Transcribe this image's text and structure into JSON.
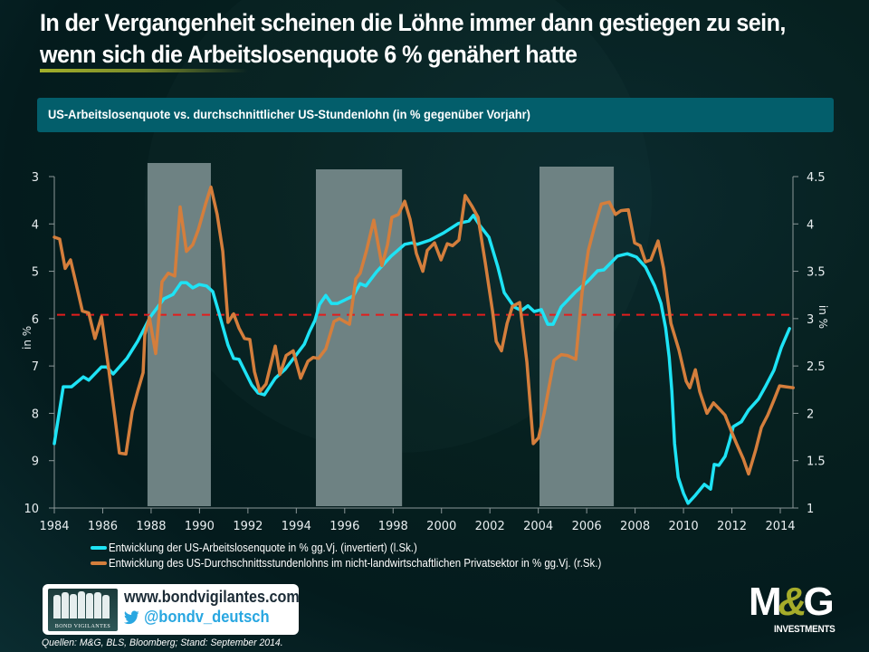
{
  "header": {
    "title": "In der Vergangenheit scheinen die Löhne immer dann gestiegen zu sein, wenn sich die Arbeitslosenquote 6 % genähert hatte",
    "subtitle": "US-Arbeitslosenquote vs. durchschnittlicher US-Stundenlohn (in  % gegenüber Vorjahr)"
  },
  "colors": {
    "unemployment": "#1ee3f5",
    "wages": "#d47e3c",
    "reference_line": "#e31d1d",
    "recession_shading": "#6e8283",
    "subtitle_box": "#035e6b",
    "brand_accent": "#a6ac2a"
  },
  "chart_data": {
    "type": "line",
    "title": "US-Arbeitslosenquote vs. durchschnittlicher US-Stundenlohn (in  % gegenüber Vorjahr)",
    "xlabel": "",
    "ylabel_left": "in %",
    "ylabel_right": "in %",
    "x_range": [
      1984,
      2014.55
    ],
    "x_ticks": [
      1984,
      1986,
      1988,
      1990,
      1992,
      1994,
      1996,
      1998,
      2000,
      2002,
      2004,
      2006,
      2008,
      2010,
      2012,
      2014
    ],
    "y_left": {
      "range": [
        3,
        10
      ],
      "inverted": true,
      "ticks": [
        3,
        4,
        5,
        6,
        7,
        8,
        9,
        10
      ]
    },
    "y_right": {
      "range": [
        1,
        4.5
      ],
      "inverted": false,
      "ticks": [
        1,
        1.5,
        2,
        2.5,
        3,
        3.5,
        4,
        4.5
      ]
    },
    "grid": false,
    "reference_line": {
      "axis": "left",
      "value": 5.92,
      "style": "dashed"
    },
    "shaded_periods": [
      {
        "start": 1987.85,
        "end": 1990.47
      },
      {
        "start": 1994.81,
        "end": 1998.37
      },
      {
        "start": 2004.05,
        "end": 2007.12
      }
    ],
    "legend_position": "bottom-left",
    "series": [
      {
        "name": "Entwicklung der US-Arbeitslosenquote in % gg.Vj. (invertiert) (l.Sk.)",
        "axis": "left",
        "points": [
          [
            1984.0,
            8.64
          ],
          [
            1984.37,
            7.44
          ],
          [
            1984.71,
            7.44
          ],
          [
            1985.2,
            7.23
          ],
          [
            1985.42,
            7.3
          ],
          [
            1985.95,
            7.02
          ],
          [
            1986.17,
            7.02
          ],
          [
            1986.43,
            7.17
          ],
          [
            1987.0,
            6.84
          ],
          [
            1987.44,
            6.48
          ],
          [
            1987.97,
            5.96
          ],
          [
            1988.53,
            5.58
          ],
          [
            1988.9,
            5.49
          ],
          [
            1989.24,
            5.24
          ],
          [
            1989.46,
            5.24
          ],
          [
            1989.72,
            5.35
          ],
          [
            1989.99,
            5.28
          ],
          [
            1990.29,
            5.31
          ],
          [
            1990.55,
            5.43
          ],
          [
            1990.85,
            5.96
          ],
          [
            1991.18,
            6.56
          ],
          [
            1991.41,
            6.84
          ],
          [
            1991.63,
            6.86
          ],
          [
            1992.16,
            7.4
          ],
          [
            1992.42,
            7.57
          ],
          [
            1992.68,
            7.61
          ],
          [
            1993.13,
            7.26
          ],
          [
            1993.54,
            7.07
          ],
          [
            1993.99,
            6.77
          ],
          [
            1994.33,
            6.54
          ],
          [
            1994.55,
            6.27
          ],
          [
            1994.77,
            6.04
          ],
          [
            1994.96,
            5.7
          ],
          [
            1995.22,
            5.51
          ],
          [
            1995.45,
            5.68
          ],
          [
            1995.71,
            5.68
          ],
          [
            1996.35,
            5.52
          ],
          [
            1996.64,
            5.26
          ],
          [
            1996.87,
            5.31
          ],
          [
            1997.32,
            5.01
          ],
          [
            1997.92,
            4.68
          ],
          [
            1998.48,
            4.43
          ],
          [
            1998.78,
            4.4
          ],
          [
            1999.0,
            4.43
          ],
          [
            1999.53,
            4.34
          ],
          [
            2000.09,
            4.19
          ],
          [
            2000.69,
            3.99
          ],
          [
            2001.13,
            3.94
          ],
          [
            2001.32,
            3.82
          ],
          [
            2001.58,
            4.03
          ],
          [
            2001.96,
            4.28
          ],
          [
            2002.33,
            4.91
          ],
          [
            2002.59,
            5.45
          ],
          [
            2003.0,
            5.75
          ],
          [
            2003.3,
            5.83
          ],
          [
            2003.57,
            5.73
          ],
          [
            2003.83,
            5.85
          ],
          [
            2004.13,
            5.81
          ],
          [
            2004.39,
            6.12
          ],
          [
            2004.61,
            6.12
          ],
          [
            2004.95,
            5.75
          ],
          [
            2005.55,
            5.43
          ],
          [
            2006.03,
            5.22
          ],
          [
            2006.45,
            4.99
          ],
          [
            2006.71,
            4.97
          ],
          [
            2007.27,
            4.68
          ],
          [
            2007.68,
            4.63
          ],
          [
            2008.06,
            4.7
          ],
          [
            2008.43,
            4.91
          ],
          [
            2008.81,
            5.31
          ],
          [
            2009.07,
            5.68
          ],
          [
            2009.26,
            6.19
          ],
          [
            2009.41,
            6.82
          ],
          [
            2009.52,
            7.53
          ],
          [
            2009.63,
            8.64
          ],
          [
            2009.78,
            9.35
          ],
          [
            2010.0,
            9.69
          ],
          [
            2010.19,
            9.9
          ],
          [
            2010.49,
            9.73
          ],
          [
            2010.86,
            9.5
          ],
          [
            2011.12,
            9.6
          ],
          [
            2011.27,
            9.08
          ],
          [
            2011.46,
            9.1
          ],
          [
            2011.72,
            8.91
          ],
          [
            2011.91,
            8.58
          ],
          [
            2012.06,
            8.28
          ],
          [
            2012.39,
            8.18
          ],
          [
            2012.69,
            7.93
          ],
          [
            2013.1,
            7.7
          ],
          [
            2013.4,
            7.42
          ],
          [
            2013.74,
            7.09
          ],
          [
            2014.04,
            6.61
          ],
          [
            2014.38,
            6.21
          ]
        ]
      },
      {
        "name": "Entwicklung des US-Durchschnittsstundenlohns im nicht-landwirtschaftlichen Privatsektor in % gg.Vj. (r.Sk.)",
        "axis": "right",
        "points": [
          [
            1984.0,
            3.86
          ],
          [
            1984.22,
            3.84
          ],
          [
            1984.45,
            3.53
          ],
          [
            1984.67,
            3.62
          ],
          [
            1984.89,
            3.38
          ],
          [
            1985.16,
            3.08
          ],
          [
            1985.42,
            3.06
          ],
          [
            1985.68,
            2.79
          ],
          [
            1985.95,
            3.02
          ],
          [
            1986.24,
            2.48
          ],
          [
            1986.51,
            1.95
          ],
          [
            1986.69,
            1.58
          ],
          [
            1986.96,
            1.57
          ],
          [
            1987.22,
            2.02
          ],
          [
            1987.44,
            2.23
          ],
          [
            1987.67,
            2.43
          ],
          [
            1987.74,
            2.83
          ],
          [
            1987.93,
            3.01
          ],
          [
            1988.19,
            2.63
          ],
          [
            1988.45,
            3.39
          ],
          [
            1988.71,
            3.48
          ],
          [
            1988.98,
            3.45
          ],
          [
            1989.2,
            4.18
          ],
          [
            1989.46,
            3.71
          ],
          [
            1989.72,
            3.78
          ],
          [
            1989.95,
            3.94
          ],
          [
            1990.25,
            4.21
          ],
          [
            1990.47,
            4.39
          ],
          [
            1990.73,
            4.1
          ],
          [
            1990.96,
            3.71
          ],
          [
            1991.18,
            2.96
          ],
          [
            1991.41,
            3.05
          ],
          [
            1991.63,
            2.9
          ],
          [
            1991.86,
            2.79
          ],
          [
            1992.08,
            2.78
          ],
          [
            1992.27,
            2.44
          ],
          [
            1992.49,
            2.23
          ],
          [
            1992.75,
            2.31
          ],
          [
            1993.13,
            2.71
          ],
          [
            1993.32,
            2.41
          ],
          [
            1993.58,
            2.61
          ],
          [
            1993.87,
            2.66
          ],
          [
            1994.18,
            2.37
          ],
          [
            1994.48,
            2.55
          ],
          [
            1994.7,
            2.59
          ],
          [
            1994.92,
            2.58
          ],
          [
            1995.22,
            2.68
          ],
          [
            1995.56,
            2.97
          ],
          [
            1995.78,
            3.0
          ],
          [
            1996.2,
            2.94
          ],
          [
            1996.46,
            3.42
          ],
          [
            1996.64,
            3.48
          ],
          [
            1996.9,
            3.72
          ],
          [
            1997.2,
            4.04
          ],
          [
            1997.54,
            3.56
          ],
          [
            1997.77,
            3.78
          ],
          [
            1997.95,
            4.07
          ],
          [
            1998.22,
            4.1
          ],
          [
            1998.48,
            4.24
          ],
          [
            1998.7,
            4.05
          ],
          [
            1998.96,
            3.69
          ],
          [
            1999.23,
            3.5
          ],
          [
            1999.41,
            3.72
          ],
          [
            1999.71,
            3.8
          ],
          [
            1999.98,
            3.62
          ],
          [
            2000.24,
            3.79
          ],
          [
            2000.46,
            3.77
          ],
          [
            2000.72,
            3.83
          ],
          [
            2000.98,
            4.3
          ],
          [
            2001.25,
            4.19
          ],
          [
            2001.51,
            4.07
          ],
          [
            2001.81,
            3.59
          ],
          [
            2002.11,
            3.08
          ],
          [
            2002.26,
            2.76
          ],
          [
            2002.48,
            2.66
          ],
          [
            2002.71,
            2.95
          ],
          [
            2002.93,
            3.13
          ],
          [
            2003.23,
            3.17
          ],
          [
            2003.53,
            2.54
          ],
          [
            2003.79,
            1.68
          ],
          [
            2004.01,
            1.74
          ],
          [
            2004.24,
            2.0
          ],
          [
            2004.65,
            2.56
          ],
          [
            2004.95,
            2.62
          ],
          [
            2005.21,
            2.61
          ],
          [
            2005.55,
            2.57
          ],
          [
            2005.81,
            3.28
          ],
          [
            2006.07,
            3.72
          ],
          [
            2006.3,
            3.95
          ],
          [
            2006.6,
            4.21
          ],
          [
            2006.93,
            4.23
          ],
          [
            2007.19,
            4.1
          ],
          [
            2007.42,
            4.14
          ],
          [
            2007.72,
            4.15
          ],
          [
            2007.98,
            3.8
          ],
          [
            2008.21,
            3.77
          ],
          [
            2008.43,
            3.6
          ],
          [
            2008.65,
            3.62
          ],
          [
            2008.95,
            3.82
          ],
          [
            2009.18,
            3.53
          ],
          [
            2009.48,
            2.95
          ],
          [
            2009.81,
            2.67
          ],
          [
            2010.11,
            2.34
          ],
          [
            2010.26,
            2.27
          ],
          [
            2010.49,
            2.46
          ],
          [
            2010.67,
            2.23
          ],
          [
            2010.97,
            2.0
          ],
          [
            2011.24,
            2.11
          ],
          [
            2011.5,
            2.04
          ],
          [
            2011.72,
            1.98
          ],
          [
            2011.98,
            1.81
          ],
          [
            2012.21,
            1.67
          ],
          [
            2012.47,
            1.52
          ],
          [
            2012.69,
            1.36
          ],
          [
            2012.99,
            1.62
          ],
          [
            2013.22,
            1.85
          ],
          [
            2013.48,
            1.98
          ],
          [
            2013.74,
            2.14
          ],
          [
            2013.97,
            2.29
          ],
          [
            2014.23,
            2.28
          ],
          [
            2014.53,
            2.27
          ]
        ]
      }
    ]
  },
  "legend": {
    "items": [
      {
        "label": "Entwicklung der US-Arbeitslosenquote in % gg.Vj. (invertiert) (l.Sk.)"
      },
      {
        "label": "Entwicklung des US-Durchschnittsstundenlohns im nicht-landwirtschaftlichen Privatsektor in % gg.Vj. (r.Sk.)"
      }
    ]
  },
  "footer": {
    "bv_logo_text": "BOND VIGILANTES",
    "website": "www.bondvigilantes.com",
    "twitter_handle": "@bondv_deutsch",
    "source": "Quellen: M&G, BLS, Bloomberg; Stand: September 2014.",
    "mg_logo_m": "M",
    "mg_logo_amp": "&",
    "mg_logo_g": "G",
    "mg_logo_sub": "INVESTMENTS"
  }
}
